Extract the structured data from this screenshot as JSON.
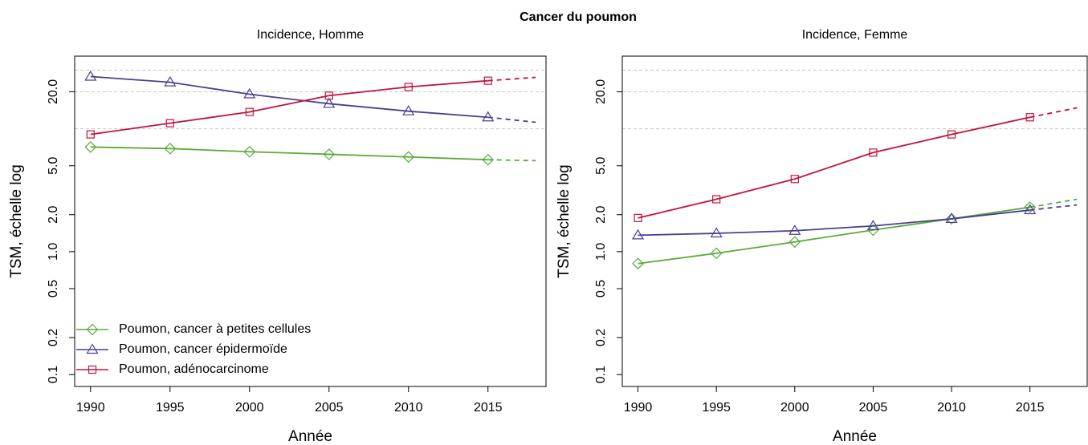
{
  "title": "Cancer du poumon",
  "chart_data": [
    {
      "type": "line",
      "title": "Incidence, Homme",
      "xlabel": "Année",
      "ylabel": "TSM, échelle log",
      "log_y": true,
      "legend": "bottom-left",
      "x": [
        1990,
        1995,
        2000,
        2005,
        2010,
        2015,
        2018
      ],
      "xlim": [
        1989,
        2018.65
      ],
      "xticks": [
        1990,
        1995,
        2000,
        2005,
        2010,
        2015
      ],
      "ylim": [
        0.08,
        39
      ],
      "yticks": [
        0.1,
        0.2,
        0.5,
        {
          "value": 1,
          "label": "1.0"
        },
        {
          "value": 2,
          "label": "2.0"
        },
        {
          "value": 5,
          "label": "5.0"
        },
        {
          "value": 20,
          "label": "20.0"
        }
      ],
      "grid_lines": [
        10,
        20,
        30
      ],
      "dashed_after": 2015,
      "series": [
        {
          "name": "Poumon, cancer à petites cellules",
          "color": "#5aab3a",
          "marker": "diamond",
          "values": [
            7.1,
            6.9,
            6.5,
            6.2,
            5.9,
            5.6,
            5.5
          ]
        },
        {
          "name": "Poumon, cancer épidermoïde",
          "color": "#4a3f8f",
          "marker": "triangle",
          "values": [
            26.6,
            23.9,
            19.1,
            16.0,
            13.9,
            12.4,
            11.3
          ]
        },
        {
          "name": "Poumon, adénocarcinome",
          "color": "#c0143c",
          "marker": "square",
          "values": [
            9.0,
            11.1,
            13.7,
            18.6,
            21.9,
            24.6,
            26.2
          ]
        }
      ]
    },
    {
      "type": "line",
      "title": "Incidence, Femme",
      "xlabel": "Année",
      "ylabel": "TSM, échelle log",
      "log_y": true,
      "x": [
        1990,
        1995,
        2000,
        2005,
        2010,
        2015,
        2018
      ],
      "xlim": [
        1989,
        2018.65
      ],
      "xticks": [
        1990,
        1995,
        2000,
        2005,
        2010,
        2015
      ],
      "ylim": [
        0.08,
        39
      ],
      "yticks": [
        0.1,
        0.2,
        0.5,
        {
          "value": 1,
          "label": "1.0"
        },
        {
          "value": 2,
          "label": "2.0"
        },
        {
          "value": 5,
          "label": "5.0"
        },
        {
          "value": 20,
          "label": "20.0"
        }
      ],
      "grid_lines": [
        10,
        20,
        30
      ],
      "dashed_after": 2015,
      "series": [
        {
          "color": "#5aab3a",
          "marker": "diamond",
          "values": [
            0.8,
            0.97,
            1.2,
            1.5,
            1.85,
            2.3,
            2.67
          ]
        },
        {
          "color": "#4a3f8f",
          "marker": "triangle",
          "values": [
            1.36,
            1.41,
            1.48,
            1.62,
            1.85,
            2.18,
            2.4
          ]
        },
        {
          "color": "#c0143c",
          "marker": "square",
          "values": [
            1.88,
            2.67,
            3.9,
            6.4,
            9.0,
            12.4,
            14.8
          ]
        }
      ]
    }
  ]
}
